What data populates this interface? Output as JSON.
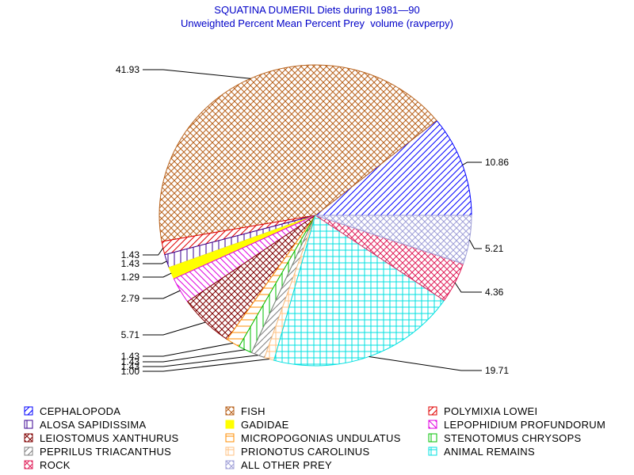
{
  "title": "SQUATINA DUMERIL Diets during 1981—90",
  "subtitle": "Unweighted Percent Mean Percent Prey  volume (ravperpy)",
  "chart_data": {
    "type": "pie",
    "title": "SQUATINA DUMERIL Diets during 1981—90",
    "subtitle": "Unweighted Percent Mean Percent Prey  volume (ravperpy)",
    "slices": [
      {
        "name": "CEPHALOPODA",
        "value": 10.86,
        "label": "10.86",
        "color": "#0000ff",
        "pattern": "diag-up"
      },
      {
        "name": "FISH",
        "value": 41.93,
        "label": "41.93",
        "color": "#b8621c",
        "pattern": "crosshatch-diag"
      },
      {
        "name": "POLYMIXIA LOWEI",
        "value": 1.43,
        "label": "1.43",
        "color": "#e00000",
        "pattern": "diag-up"
      },
      {
        "name": "ALOSA SAPIDISSIMA",
        "value": 1.43,
        "label": "1.43",
        "color": "#3a0090",
        "pattern": "vertical"
      },
      {
        "name": "GADIDAE",
        "value": 1.29,
        "label": "1.29",
        "color": "#ffff00",
        "pattern": "solid"
      },
      {
        "name": "LEPOPHIDIUM PROFUNDORUM",
        "value": 2.79,
        "label": "2.79",
        "color": "#e000e0",
        "pattern": "diag-down"
      },
      {
        "name": "LEIOSTOMUS XANTHURUS",
        "value": 5.71,
        "label": "5.71",
        "color": "#800000",
        "pattern": "crosshatch-diag"
      },
      {
        "name": "MICROPOGONIAS UNDULATUS",
        "value": 1.43,
        "label": "1.43",
        "color": "#ff8c00",
        "pattern": "horizontal"
      },
      {
        "name": "STENOTOMUS CHRYSOPS",
        "value": 1.43,
        "label": "1.43",
        "color": "#00c000",
        "pattern": "vertical"
      },
      {
        "name": "PEPRILUS TRIACANTHUS",
        "value": 1.43,
        "label": "1.43",
        "color": "#808080",
        "pattern": "diag-up"
      },
      {
        "name": "PRIONOTUS CAROLINUS",
        "value": 1.0,
        "label": "1.00",
        "color": "#ffc080",
        "pattern": "grid"
      },
      {
        "name": "ANIMAL REMAINS",
        "value": 19.71,
        "label": "19.71",
        "color": "#00e0e0",
        "pattern": "grid"
      },
      {
        "name": "ROCK",
        "value": 4.36,
        "label": "4.36",
        "color": "#e0205a",
        "pattern": "crosshatch-diag"
      },
      {
        "name": "ALL OTHER PREY",
        "value": 5.21,
        "label": "5.21",
        "color": "#a0a0d8",
        "pattern": "crosshatch-diag"
      }
    ],
    "start_angle_deg": 0,
    "direction": "counterclockwise",
    "legend_placement": "bottom"
  },
  "legend": [
    {
      "label": "CEPHALOPODA"
    },
    {
      "label": "FISH"
    },
    {
      "label": "POLYMIXIA LOWEI"
    },
    {
      "label": "ALOSA SAPIDISSIMA"
    },
    {
      "label": "GADIDAE"
    },
    {
      "label": "LEPOPHIDIUM PROFUNDORUM"
    },
    {
      "label": "LEIOSTOMUS XANTHURUS"
    },
    {
      "label": "MICROPOGONIAS UNDULATUS"
    },
    {
      "label": "STENOTOMUS CHRYSOPS"
    },
    {
      "label": "PEPRILUS TRIACANTHUS"
    },
    {
      "label": "PRIONOTUS CAROLINUS"
    },
    {
      "label": "ANIMAL REMAINS"
    },
    {
      "label": "ROCK"
    },
    {
      "label": "ALL OTHER PREY"
    }
  ]
}
